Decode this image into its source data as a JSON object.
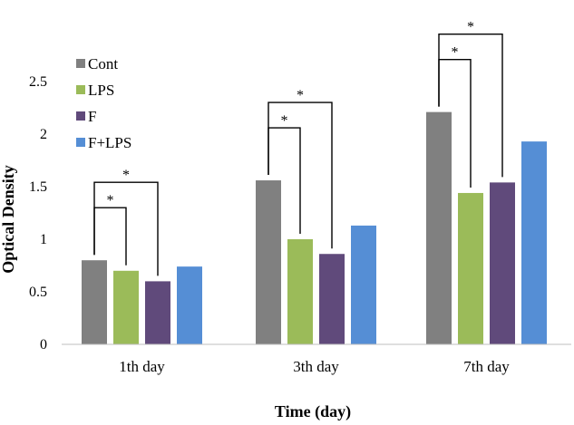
{
  "chart_data": {
    "type": "bar",
    "title": "",
    "xlabel": "Time (day)",
    "ylabel": "Optical Density",
    "ylim": [
      0,
      2.5
    ],
    "yticks": [
      "0",
      "0.5",
      "1",
      "1.5",
      "2",
      "2.5"
    ],
    "grid": false,
    "legend_position": "top-left",
    "categories": [
      "1th day",
      "3th day",
      "7th day"
    ],
    "series": [
      {
        "name": "Cont",
        "color": "#808080",
        "values": [
          0.8,
          1.56,
          2.21
        ]
      },
      {
        "name": "LPS",
        "color": "#9bbb59",
        "values": [
          0.7,
          1.0,
          1.44
        ]
      },
      {
        "name": "F",
        "color": "#604a7b",
        "values": [
          0.6,
          0.86,
          1.54
        ]
      },
      {
        "name": "F+LPS",
        "color": "#558ed5",
        "values": [
          0.74,
          1.13,
          1.93
        ]
      }
    ],
    "significance": [
      {
        "category": 0,
        "pair": [
          "Cont",
          "LPS"
        ],
        "label": "*"
      },
      {
        "category": 0,
        "pair": [
          "Cont",
          "F"
        ],
        "label": "*"
      },
      {
        "category": 1,
        "pair": [
          "Cont",
          "LPS"
        ],
        "label": "*"
      },
      {
        "category": 1,
        "pair": [
          "Cont",
          "F"
        ],
        "label": "*"
      },
      {
        "category": 2,
        "pair": [
          "Cont",
          "LPS"
        ],
        "label": "*"
      },
      {
        "category": 2,
        "pair": [
          "Cont",
          "F"
        ],
        "label": "*"
      }
    ]
  }
}
